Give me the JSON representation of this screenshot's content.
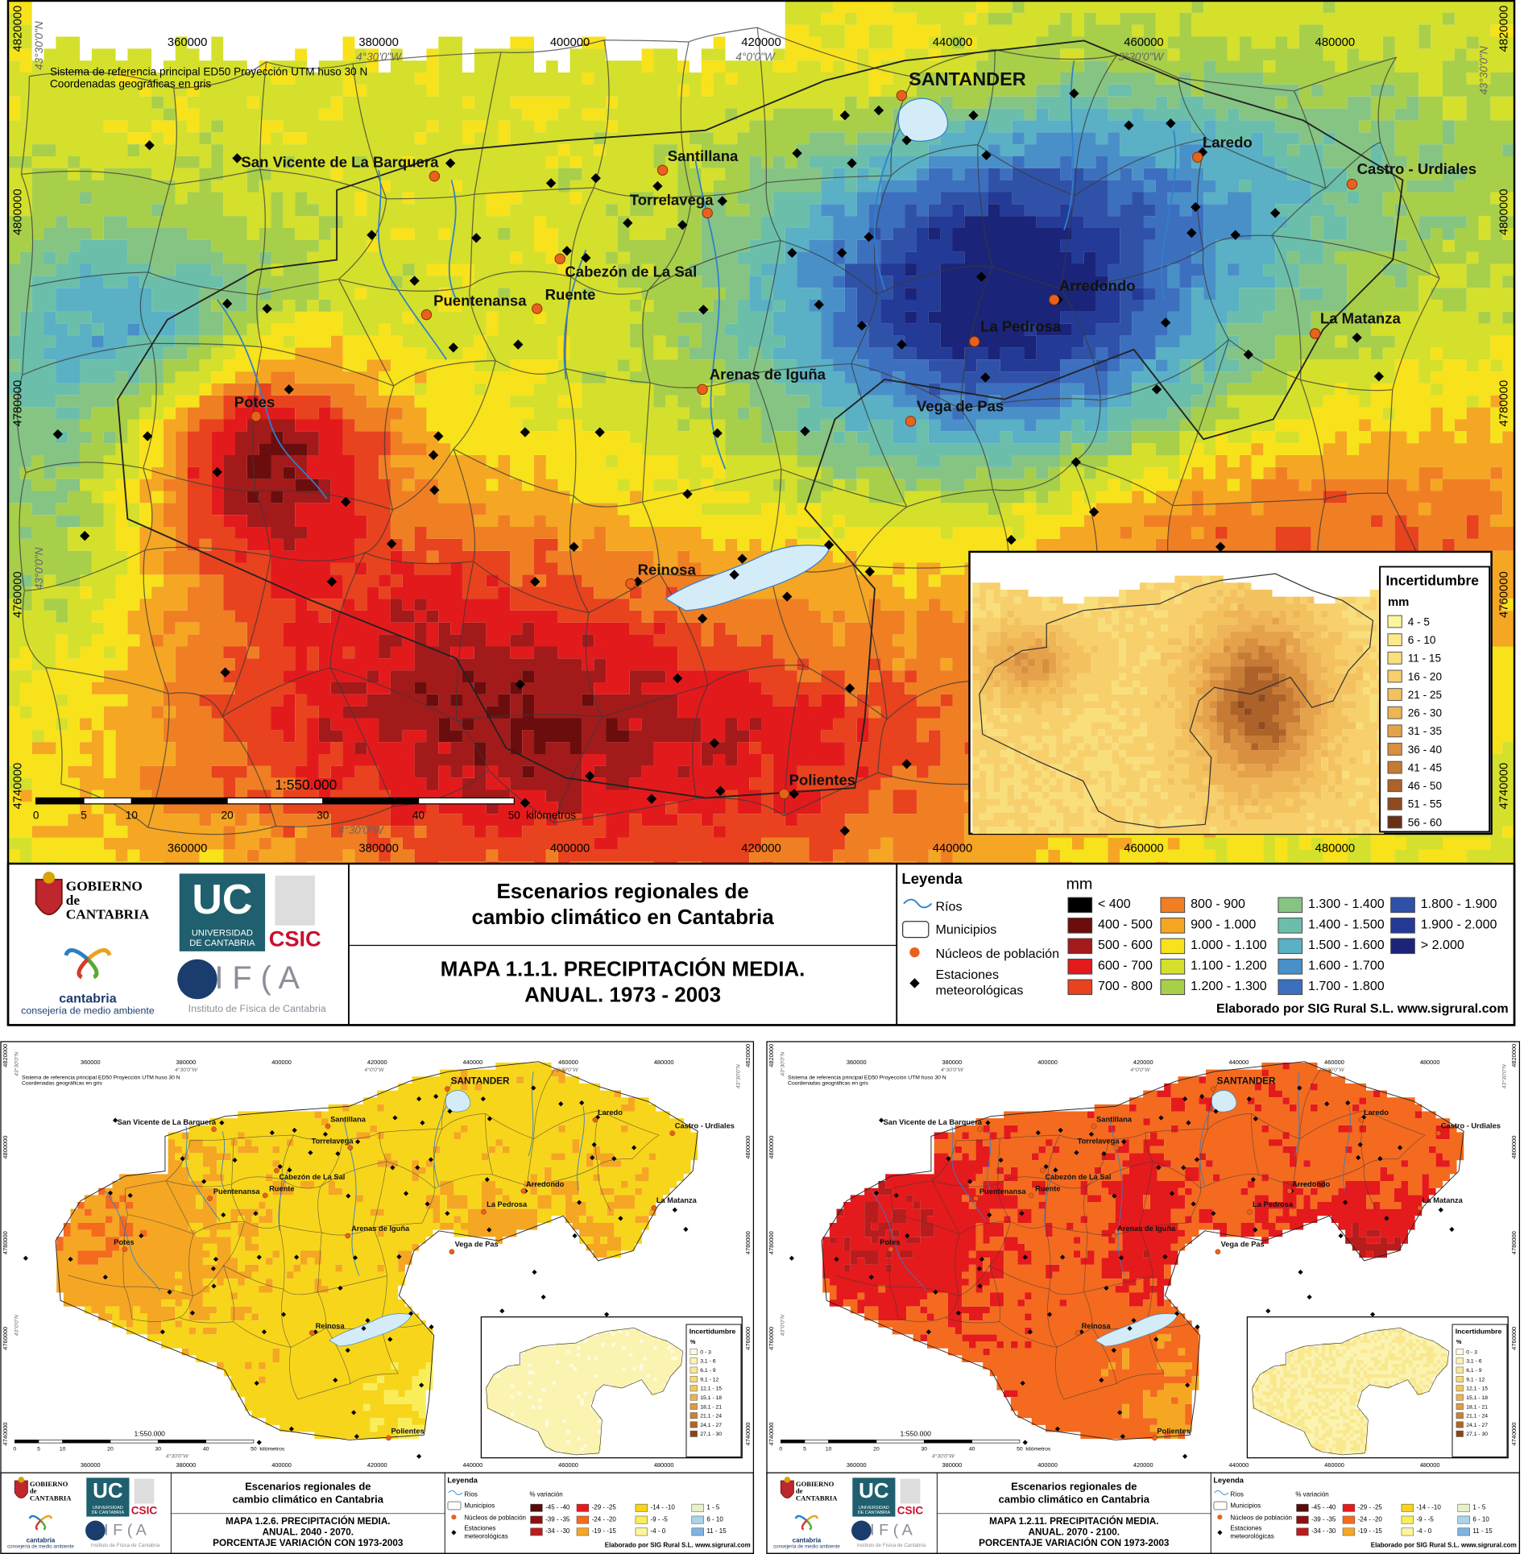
{
  "reference_note": [
    "Sistema de referencia principal ED50 Proyección UTM huso 30 N",
    "Coordenadas geográficas en gris"
  ],
  "coordinates": {
    "easting": [
      "360000",
      "380000",
      "400000",
      "420000",
      "440000",
      "460000",
      "480000"
    ],
    "northing": [
      "4820000",
      "4800000",
      "4780000",
      "4760000",
      "4740000"
    ],
    "longitude": [
      "4°30'0\"W",
      "4°0'0\"W",
      "3°30'0\"W"
    ],
    "latitude": [
      "43°30'0\"N",
      "43°0'0\"N"
    ]
  },
  "places": [
    "SANTANDER",
    "San Vicente de La Barquera",
    "Santillana",
    "Torrelavega",
    "Cabezón de La Sal",
    "Ruente",
    "Puentenansa",
    "Potes",
    "Arenas de Iguña",
    "Arredondo",
    "La Pedrosa",
    "Vega de Pas",
    "Laredo",
    "Castro - Urdiales",
    "La Matanza",
    "Reinosa",
    "Polientes"
  ],
  "scale": {
    "ratio": "1:550.000",
    "marks": [
      "0",
      "5",
      "10",
      "20",
      "30",
      "40",
      "50"
    ],
    "unit": "kilómetros"
  },
  "logos": {
    "government": [
      "GOBIERNO",
      "de",
      "CANTABRIA"
    ],
    "university": [
      "UC",
      "UNIVERSIDAD",
      "DE CANTABRIA"
    ],
    "csic": "CSIC",
    "cantabria": [
      "cantabria",
      "consejería de medio ambiente"
    ],
    "ifca": [
      "I F ( A",
      "Instituto de Física de Cantabria"
    ]
  },
  "project_title": [
    "Escenarios regionales de",
    "cambio climático en Cantabria"
  ],
  "legend": {
    "title": "Leyenda",
    "rivers": "Ríos",
    "municipalities": "Municipios",
    "towns": "Núcleos de población",
    "stations": [
      "Estaciones",
      "meteorológicas"
    ]
  },
  "credit": "Elaborado por SIG Rural S.L. www.sigrural.com",
  "maps": [
    {
      "title": [
        "MAPA 1.1.1. PRECIPITACIÓN MEDIA.",
        "ANUAL. 1973 - 2003"
      ],
      "class_unit": "mm",
      "classes": [
        "< 400",
        "400 - 500",
        "500 - 600",
        "600 - 700",
        "700 - 800",
        "800 - 900",
        "900 - 1.000",
        "1.000 - 1.100",
        "1.100 - 1.200",
        "1.200 - 1.300",
        "1.300 - 1.400",
        "1.400 - 1.500",
        "1.500 - 1.600",
        "1.600 - 1.700",
        "1.700 - 1.800",
        "1.800 - 1.900",
        "1.900 - 2.000",
        "> 2.000"
      ],
      "class_colors": [
        "#000000",
        "#6b0d0d",
        "#a31a1a",
        "#e31a1c",
        "#e8421e",
        "#f07f24",
        "#f5a623",
        "#f7e21b",
        "#d4e02c",
        "#a8cf4a",
        "#86c483",
        "#6bbfaa",
        "#5ab0c4",
        "#4a90c8",
        "#3d6fbf",
        "#2f52a8",
        "#233a96",
        "#1a2478"
      ],
      "inset": {
        "title": "Incertidumbre",
        "unit": "mm",
        "classes": [
          "4 - 5",
          "6 - 10",
          "11 - 15",
          "16 - 20",
          "21 - 25",
          "26 - 30",
          "31 - 35",
          "36 - 40",
          "41 - 45",
          "46 - 50",
          "51 - 55",
          "56 - 60"
        ],
        "colors": [
          "#fbf59b",
          "#fbe98a",
          "#f9df7c",
          "#f7d06c",
          "#f3c25f",
          "#eeb455",
          "#e5a24a",
          "#d88f3f",
          "#c67a34",
          "#ad6229",
          "#8f4a1e",
          "#6b2e12"
        ]
      }
    },
    {
      "title": [
        "MAPA 1.2.6. PRECIPITACIÓN MEDIA.",
        "ANUAL. 2040 - 2070.",
        "PORCENTAJE VARIACIÓN CON 1973-2003"
      ],
      "class_unit": "% variación",
      "classes": [
        "-45 - -40",
        "-39 - -35",
        "-34 - -30",
        "-29 - -25",
        "-24 - -20",
        "-19 - -15",
        "-14 - -10",
        "-9 - -5",
        "-4 - 0",
        "1 - 5",
        "6 - 10",
        "11 - 15"
      ],
      "class_colors": [
        "#5a0a0a",
        "#8b1010",
        "#b81d1d",
        "#e41a1c",
        "#f46a1f",
        "#f5a623",
        "#f7d51b",
        "#f9ee5a",
        "#fbf59b",
        "#e9f0c6",
        "#a9d4ea",
        "#7fb3e3"
      ],
      "inset": {
        "title": "Incertidumbre",
        "unit": "%",
        "classes": [
          "0 - 3",
          "3,1 - 6",
          "6,1 - 9",
          "9,1 - 12",
          "12,1 - 15",
          "15,1 - 18",
          "18,1 - 21",
          "21,1 - 24",
          "24,1 - 27",
          "27,1 - 30"
        ],
        "colors": [
          "#fdfbe0",
          "#fbf3b0",
          "#f9e88d",
          "#f6da72",
          "#f1c85f",
          "#e9b452",
          "#dc9c45",
          "#c98238",
          "#ad6429",
          "#8a4418"
        ]
      }
    },
    {
      "title": [
        "MAPA 1.2.11. PRECIPITACIÓN MEDIA.",
        "ANUAL. 2070 - 2100.",
        "PORCENTAJE VARIACIÓN CON 1973-2003"
      ],
      "class_unit": "% variación",
      "classes": [
        "-45 - -40",
        "-39 - -35",
        "-34 - -30",
        "-29 - -25",
        "-24 - -20",
        "-19 - -15",
        "-14 - -10",
        "-9 - -5",
        "-4 - 0",
        "1 - 5",
        "6 - 10",
        "11 - 15"
      ],
      "class_colors": [
        "#5a0a0a",
        "#8b1010",
        "#b81d1d",
        "#e41a1c",
        "#f46a1f",
        "#f5a623",
        "#f7d51b",
        "#f9ee5a",
        "#fbf59b",
        "#e9f0c6",
        "#a9d4ea",
        "#7fb3e3"
      ],
      "inset": {
        "title": "Incertidumbre",
        "unit": "%",
        "classes": [
          "0 - 3",
          "3,1 - 6",
          "6,1 - 9",
          "9,1 - 12",
          "12,1 - 15",
          "15,1 - 18",
          "18,1 - 21",
          "21,1 - 24",
          "24,1 - 27",
          "27,1 - 30"
        ],
        "colors": [
          "#fdfbe0",
          "#fbf3b0",
          "#f9e88d",
          "#f6da72",
          "#f1c85f",
          "#e9b452",
          "#dc9c45",
          "#c98238",
          "#ad6429",
          "#8a4418"
        ]
      }
    }
  ]
}
